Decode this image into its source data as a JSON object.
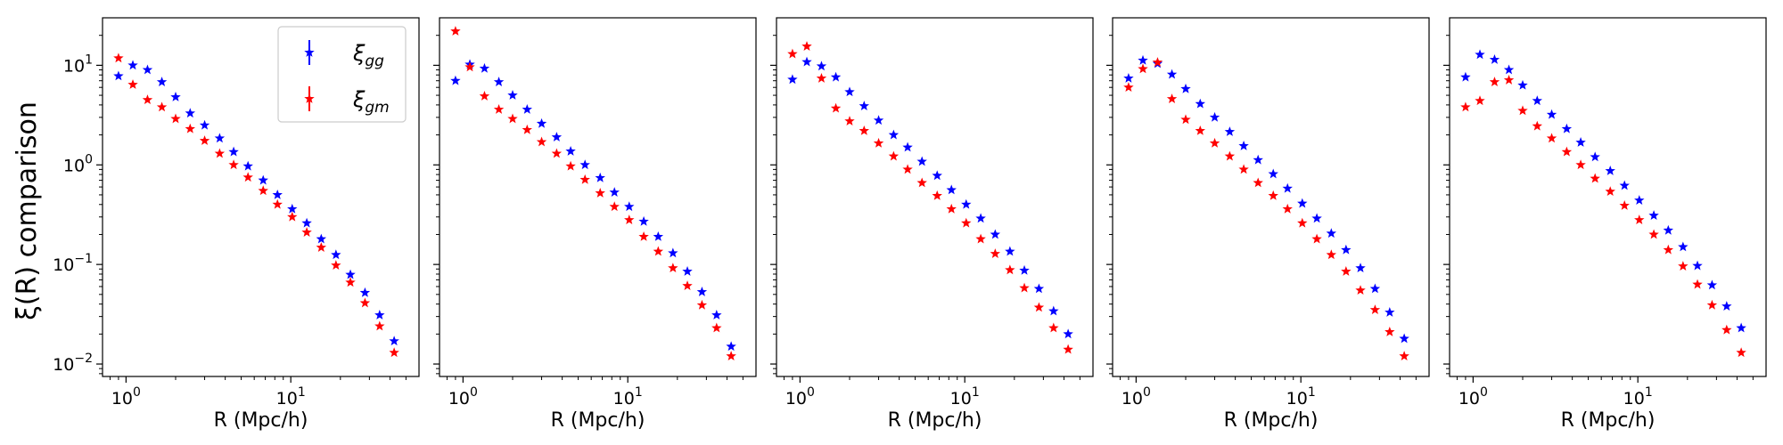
{
  "chart_data": {
    "type": "scatter",
    "x_scale": "log",
    "y_scale": "log",
    "xlim": [
      0.72,
      60
    ],
    "ylim": [
      0.0075,
      30
    ],
    "ylabel": "ξ(R) comparison",
    "grid": false,
    "legend": {
      "placement": "top-right",
      "panel": 1,
      "entries": [
        {
          "name": "ξgg",
          "symbol": "ξ",
          "sub": "gg",
          "color": "#0000ff"
        },
        {
          "name": "ξgm",
          "symbol": "ξ",
          "sub": "gm",
          "color": "#ff0000"
        }
      ]
    },
    "x_ticks": [
      1,
      10
    ],
    "x_tick_labels": [
      {
        "base": "10",
        "exp": "0"
      },
      {
        "base": "10",
        "exp": "1"
      }
    ],
    "y_ticks": [
      0.01,
      0.1,
      1,
      10
    ],
    "y_tick_labels": [
      {
        "base": "10",
        "exp": "−2"
      },
      {
        "base": "10",
        "exp": "−1"
      },
      {
        "base": "10",
        "exp": "0"
      },
      {
        "base": "10",
        "exp": "1"
      }
    ],
    "panels": [
      {
        "xlabel": "R  (Mpc/h)",
        "series": [
          {
            "name": "ξgg",
            "color": "#0000ff",
            "marker": "star",
            "x": [
              0.9,
              1.1,
              1.35,
              1.65,
              2.0,
              2.45,
              3.0,
              3.7,
              4.5,
              5.5,
              6.8,
              8.3,
              10.2,
              12.5,
              15.3,
              18.8,
              23.0,
              28.2,
              34.6,
              42.4
            ],
            "y": [
              7.8,
              10.0,
              9.0,
              6.8,
              4.8,
              3.3,
              2.5,
              1.85,
              1.35,
              0.97,
              0.7,
              0.5,
              0.36,
              0.26,
              0.18,
              0.125,
              0.079,
              0.052,
              0.031,
              0.017
            ]
          },
          {
            "name": "ξgm",
            "color": "#ff0000",
            "marker": "star",
            "x": [
              0.9,
              1.1,
              1.35,
              1.65,
              2.0,
              2.45,
              3.0,
              3.7,
              4.5,
              5.5,
              6.8,
              8.3,
              10.2,
              12.5,
              15.3,
              18.8,
              23.0,
              28.2,
              34.6,
              42.4
            ],
            "y": [
              11.8,
              6.4,
              4.5,
              3.8,
              2.9,
              2.3,
              1.75,
              1.3,
              1.0,
              0.75,
              0.55,
              0.4,
              0.3,
              0.21,
              0.148,
              0.098,
              0.066,
              0.041,
              0.024,
              0.013
            ]
          }
        ]
      },
      {
        "xlabel": "R  (Mpc/h)",
        "series": [
          {
            "name": "ξgg",
            "color": "#0000ff",
            "marker": "star",
            "x": [
              0.9,
              1.1,
              1.35,
              1.65,
              2.0,
              2.45,
              3.0,
              3.7,
              4.5,
              5.5,
              6.8,
              8.3,
              10.2,
              12.5,
              15.3,
              18.8,
              23.0,
              28.2,
              34.6,
              42.4
            ],
            "y": [
              7.0,
              10.2,
              9.3,
              6.8,
              5.0,
              3.6,
              2.6,
              1.9,
              1.37,
              1.0,
              0.74,
              0.53,
              0.38,
              0.27,
              0.19,
              0.13,
              0.085,
              0.053,
              0.031,
              0.015
            ]
          },
          {
            "name": "ξgm",
            "color": "#ff0000",
            "marker": "star",
            "x": [
              0.9,
              1.1,
              1.35,
              1.65,
              2.0,
              2.45,
              3.0,
              3.7,
              4.5,
              5.5,
              6.8,
              8.3,
              10.2,
              12.5,
              15.3,
              18.8,
              23.0,
              28.2,
              34.6,
              42.4
            ],
            "y": [
              22.0,
              9.6,
              4.9,
              3.6,
              2.9,
              2.25,
              1.7,
              1.3,
              0.97,
              0.71,
              0.52,
              0.38,
              0.28,
              0.19,
              0.135,
              0.092,
              0.061,
              0.039,
              0.023,
              0.012
            ]
          }
        ]
      },
      {
        "xlabel": "R  (Mpc/h)",
        "series": [
          {
            "name": "ξgg",
            "color": "#0000ff",
            "marker": "star",
            "x": [
              0.9,
              1.1,
              1.35,
              1.65,
              2.0,
              2.45,
              3.0,
              3.7,
              4.5,
              5.5,
              6.8,
              8.3,
              10.2,
              12.5,
              15.3,
              18.8,
              23.0,
              28.2,
              34.6,
              42.4
            ],
            "y": [
              7.2,
              10.8,
              9.8,
              7.6,
              5.4,
              3.9,
              2.8,
              2.0,
              1.5,
              1.08,
              0.78,
              0.56,
              0.4,
              0.29,
              0.2,
              0.135,
              0.087,
              0.057,
              0.034,
              0.02
            ]
          },
          {
            "name": "ξgm",
            "color": "#ff0000",
            "marker": "star",
            "x": [
              0.9,
              1.1,
              1.35,
              1.65,
              2.0,
              2.45,
              3.0,
              3.7,
              4.5,
              5.5,
              6.8,
              8.3,
              10.2,
              12.5,
              15.3,
              18.8,
              23.0,
              28.2,
              34.6,
              42.4
            ],
            "y": [
              13.0,
              15.5,
              7.4,
              3.7,
              2.75,
              2.2,
              1.65,
              1.22,
              0.9,
              0.66,
              0.49,
              0.36,
              0.26,
              0.18,
              0.128,
              0.088,
              0.058,
              0.037,
              0.023,
              0.014
            ]
          }
        ]
      },
      {
        "xlabel": "R  (Mpc/h)",
        "series": [
          {
            "name": "ξgg",
            "color": "#0000ff",
            "marker": "star",
            "x": [
              0.9,
              1.1,
              1.35,
              1.65,
              2.0,
              2.45,
              3.0,
              3.7,
              4.5,
              5.5,
              6.8,
              8.3,
              10.2,
              12.5,
              15.3,
              18.8,
              23.0,
              28.2,
              34.6,
              42.4
            ],
            "y": [
              7.4,
              11.2,
              10.4,
              8.1,
              5.8,
              4.1,
              3.0,
              2.15,
              1.55,
              1.12,
              0.81,
              0.58,
              0.41,
              0.29,
              0.205,
              0.14,
              0.092,
              0.057,
              0.033,
              0.018
            ]
          },
          {
            "name": "ξgm",
            "color": "#ff0000",
            "marker": "star",
            "x": [
              0.9,
              1.1,
              1.35,
              1.65,
              2.0,
              2.45,
              3.0,
              3.7,
              4.5,
              5.5,
              6.8,
              8.3,
              10.2,
              12.5,
              15.3,
              18.8,
              23.0,
              28.2,
              34.6,
              42.4
            ],
            "y": [
              6.0,
              9.2,
              10.7,
              4.6,
              2.85,
              2.2,
              1.65,
              1.22,
              0.9,
              0.66,
              0.49,
              0.36,
              0.26,
              0.18,
              0.125,
              0.085,
              0.055,
              0.035,
              0.021,
              0.012
            ]
          }
        ]
      },
      {
        "xlabel": "R  (Mpc/h)",
        "series": [
          {
            "name": "ξgg",
            "color": "#0000ff",
            "marker": "star",
            "x": [
              0.9,
              1.1,
              1.35,
              1.65,
              2.0,
              2.45,
              3.0,
              3.7,
              4.5,
              5.5,
              6.8,
              8.3,
              10.2,
              12.5,
              15.3,
              18.8,
              23.0,
              28.2,
              34.6,
              42.4
            ],
            "y": [
              7.6,
              12.8,
              11.4,
              9.0,
              6.3,
              4.4,
              3.2,
              2.3,
              1.68,
              1.2,
              0.87,
              0.62,
              0.44,
              0.31,
              0.22,
              0.15,
              0.097,
              0.062,
              0.038,
              0.023
            ]
          },
          {
            "name": "ξgm",
            "color": "#ff0000",
            "marker": "star",
            "x": [
              0.9,
              1.1,
              1.35,
              1.65,
              2.0,
              2.45,
              3.0,
              3.7,
              4.5,
              5.5,
              6.8,
              8.3,
              10.2,
              12.5,
              15.3,
              18.8,
              23.0,
              28.2,
              34.6,
              42.4
            ],
            "y": [
              3.8,
              4.4,
              6.8,
              7.1,
              3.5,
              2.45,
              1.85,
              1.35,
              1.0,
              0.73,
              0.54,
              0.39,
              0.28,
              0.2,
              0.14,
              0.096,
              0.063,
              0.039,
              0.022,
              0.013
            ]
          }
        ]
      }
    ]
  }
}
